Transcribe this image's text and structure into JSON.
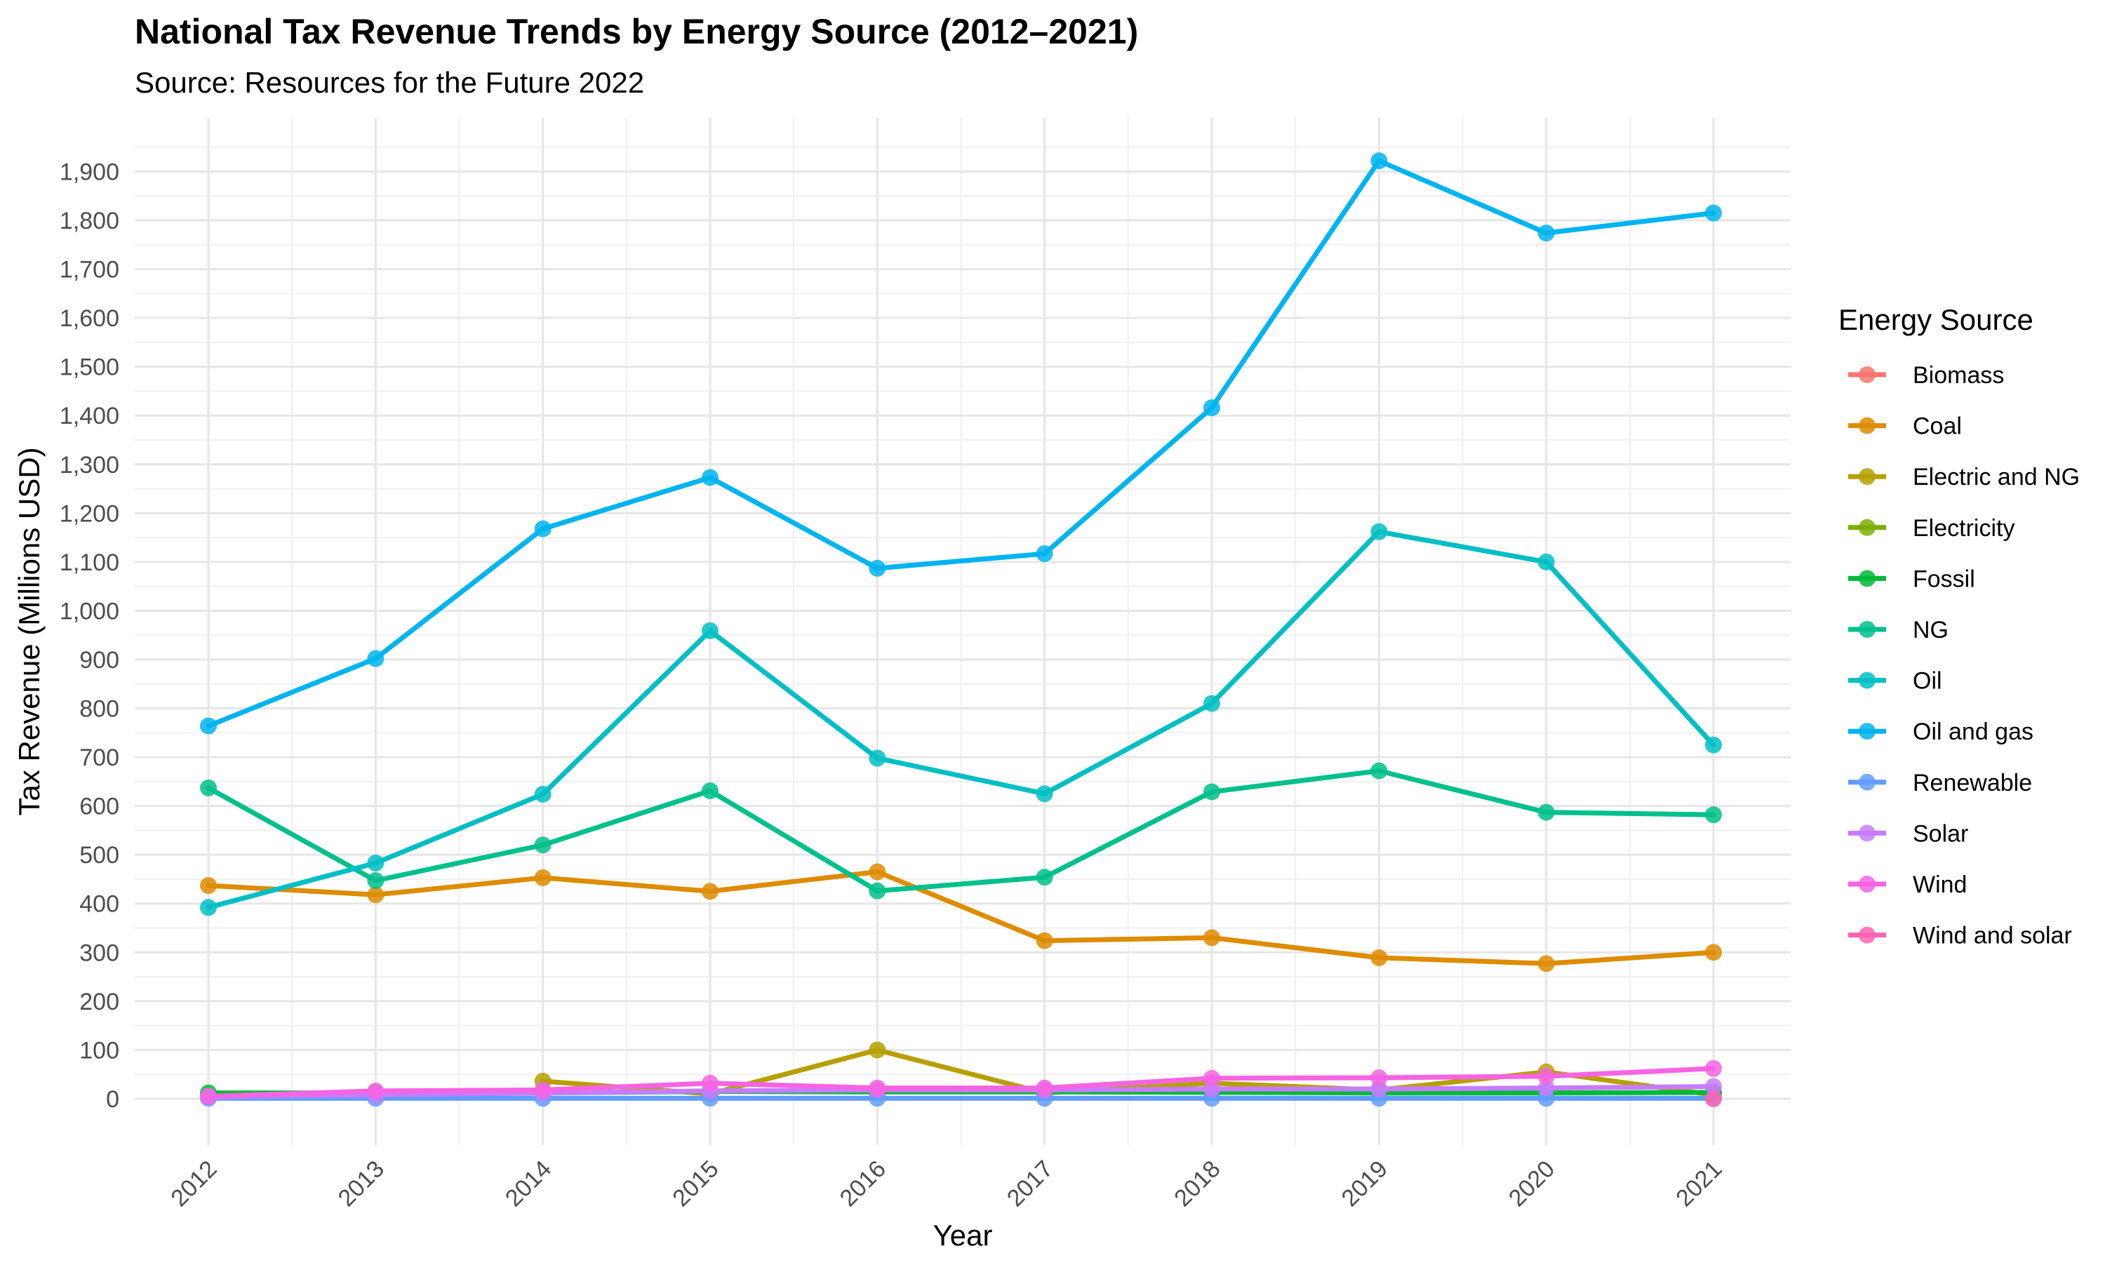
{
  "chart_data": {
    "type": "line",
    "title": "National Tax Revenue Trends by Energy Source (2012–2021)",
    "subtitle": "Source: Resources for the Future 2022",
    "xlabel": "Year",
    "ylabel": "Tax Revenue (Millions USD)",
    "x": [
      "2012",
      "2013",
      "2014",
      "2015",
      "2016",
      "2017",
      "2018",
      "2019",
      "2020",
      "2021"
    ],
    "yticks": [
      "0",
      "100",
      "200",
      "300",
      "400",
      "500",
      "600",
      "700",
      "800",
      "900",
      "1,000",
      "1,100",
      "1,200",
      "1,300",
      "1,400",
      "1,500",
      "1,600",
      "1,700",
      "1,800",
      "1,900"
    ],
    "ylim": [
      -95,
      2010
    ],
    "grid": true,
    "legend_title": "Energy Source",
    "legend_position": "right",
    "series": [
      {
        "name": "Biomass",
        "color": "#F8766D",
        "values": [
          null,
          null,
          null,
          null,
          null,
          null,
          null,
          null,
          null,
          null
        ]
      },
      {
        "name": "Coal",
        "color": "#DE8C00",
        "values": [
          437,
          418,
          453,
          425,
          465,
          324,
          330,
          289,
          277,
          300
        ]
      },
      {
        "name": "Electric and NG",
        "color": "#B79F00",
        "values": [
          null,
          null,
          36,
          10,
          100,
          12,
          32,
          18,
          55,
          8
        ]
      },
      {
        "name": "Electricity",
        "color": "#7CAE00",
        "values": [
          null,
          null,
          null,
          null,
          null,
          null,
          null,
          null,
          null,
          null
        ]
      },
      {
        "name": "Fossil",
        "color": "#00BA38",
        "values": [
          12,
          12,
          12,
          15,
          14,
          14,
          13,
          12,
          12,
          13
        ]
      },
      {
        "name": "NG",
        "color": "#00C08B",
        "values": [
          637,
          447,
          520,
          631,
          426,
          454,
          629,
          672,
          587,
          582
        ]
      },
      {
        "name": "Oil",
        "color": "#00BFC4",
        "values": [
          392,
          483,
          624,
          959,
          698,
          625,
          810,
          1162,
          1100,
          725
        ]
      },
      {
        "name": "Oil and gas",
        "color": "#00B4F0",
        "values": [
          764,
          902,
          1168,
          1273,
          1087,
          1117,
          1416,
          1922,
          1774,
          1815
        ]
      },
      {
        "name": "Renewable",
        "color": "#619CFF",
        "values": [
          1,
          1,
          1,
          1,
          1,
          1,
          1,
          1,
          1,
          1
        ]
      },
      {
        "name": "Solar",
        "color": "#C77CFF",
        "values": [
          4,
          8,
          12,
          16,
          18,
          18,
          20,
          20,
          22,
          25
        ]
      },
      {
        "name": "Wind",
        "color": "#F564E3",
        "values": [
          5,
          16,
          18,
          32,
          22,
          22,
          42,
          43,
          46,
          62
        ]
      },
      {
        "name": "Wind and solar",
        "color": "#FF64B0",
        "values": [
          null,
          null,
          null,
          null,
          null,
          null,
          null,
          null,
          null,
          0
        ]
      }
    ]
  }
}
